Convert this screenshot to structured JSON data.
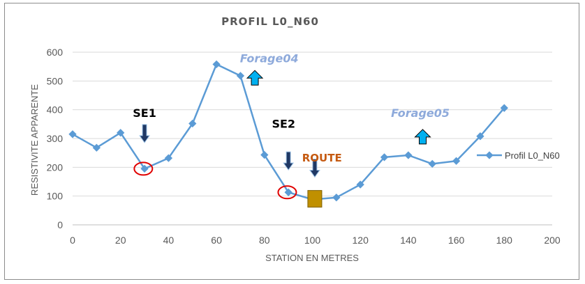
{
  "chart_data": {
    "type": "line",
    "title": "PROFIL L0_N60",
    "xlabel": "STATION EN METRES",
    "ylabel": "RESISTIVITE APPARENTE",
    "xlim": [
      0,
      200
    ],
    "ylim": [
      0,
      600
    ],
    "xticks": [
      "0",
      "20",
      "40",
      "60",
      "80",
      "100",
      "120",
      "140",
      "160",
      "180",
      "200"
    ],
    "yticks": [
      "0",
      "100",
      "200",
      "300",
      "400",
      "500",
      "600"
    ],
    "grid": true,
    "legend_position": "right",
    "series": [
      {
        "name": "Profil L0_N60",
        "color": "#5b9bd5",
        "x": [
          0,
          10,
          20,
          30,
          40,
          50,
          60,
          70,
          80,
          90,
          100,
          110,
          120,
          130,
          140,
          150,
          160,
          170,
          180
        ],
        "y": [
          315,
          268,
          320,
          195,
          232,
          352,
          558,
          518,
          243,
          113,
          88,
          95,
          140,
          235,
          242,
          212,
          222,
          308,
          406
        ]
      }
    ],
    "annotations": [
      {
        "text": "SE1",
        "kind": "label",
        "x": 30,
        "y": 375,
        "color": "#000000"
      },
      {
        "text": "SE2",
        "kind": "label",
        "x": 88,
        "y": 338,
        "color": "#000000"
      },
      {
        "text": "Forage04",
        "kind": "label",
        "x": 82,
        "y": 565,
        "color": "#8eaadb"
      },
      {
        "text": "Forage05",
        "kind": "label",
        "x": 145,
        "y": 375,
        "color": "#8eaadb"
      },
      {
        "text": "ROUTE",
        "kind": "label",
        "x": 104,
        "y": 220,
        "color": "#c55a11"
      }
    ],
    "markers": [
      {
        "kind": "arrow-down",
        "x": 30,
        "y": 310,
        "color": "#1f3864"
      },
      {
        "kind": "arrow-down",
        "x": 90,
        "y": 215,
        "color": "#1f3864"
      },
      {
        "kind": "arrow-down",
        "x": 101,
        "y": 190,
        "color": "#1f3864"
      },
      {
        "kind": "arrow-up",
        "x": 76,
        "y": 510,
        "color": "#00b0f0"
      },
      {
        "kind": "arrow-up",
        "x": 146,
        "y": 305,
        "color": "#00b0f0"
      },
      {
        "kind": "circle",
        "x": 29.5,
        "y": 195,
        "color": "#e00000"
      },
      {
        "kind": "circle",
        "x": 89.5,
        "y": 113,
        "color": "#e00000"
      },
      {
        "kind": "square",
        "x": 101,
        "y": 88,
        "color": "#c09000"
      }
    ]
  }
}
